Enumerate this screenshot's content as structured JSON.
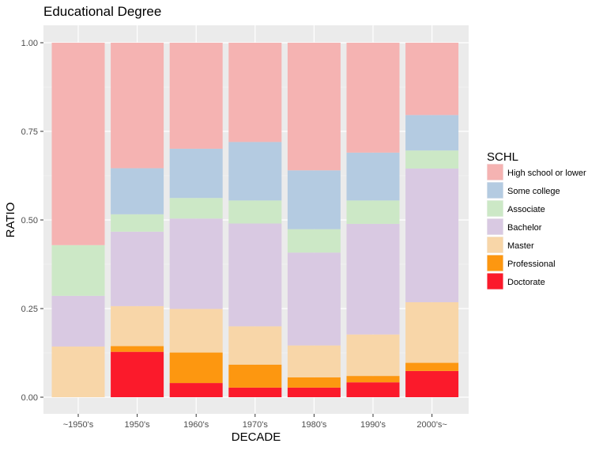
{
  "chart_data": {
    "type": "bar",
    "stacked": true,
    "normalized": true,
    "title": "Educational Degree",
    "xlabel": "DECADE",
    "ylabel": "RATIO",
    "ylim": [
      0,
      1
    ],
    "yticks": [
      "0.00",
      "0.25",
      "0.50",
      "0.75",
      "1.00"
    ],
    "ytick_values": [
      0,
      0.25,
      0.5,
      0.75,
      1.0
    ],
    "categories": [
      "~1950's",
      "1950's",
      "1960's",
      "1970's",
      "1980's",
      "1990's",
      "2000's~"
    ],
    "grid": true,
    "legend_position": "right",
    "legend_title": "SCHL",
    "series": [
      {
        "name": "Doctorate",
        "color": "#fb1a2b",
        "values": [
          0.0,
          0.128,
          0.04,
          0.027,
          0.027,
          0.042,
          0.074
        ]
      },
      {
        "name": "Professional",
        "color": "#fd9710",
        "values": [
          0.0,
          0.016,
          0.086,
          0.065,
          0.029,
          0.018,
          0.023
        ]
      },
      {
        "name": "Master",
        "color": "#f8d6a8",
        "values": [
          0.143,
          0.113,
          0.123,
          0.108,
          0.09,
          0.117,
          0.171
        ]
      },
      {
        "name": "Bachelor",
        "color": "#d9c9e2",
        "values": [
          0.143,
          0.21,
          0.255,
          0.29,
          0.262,
          0.312,
          0.377
        ]
      },
      {
        "name": "Associate",
        "color": "#cce8c6",
        "values": [
          0.143,
          0.049,
          0.058,
          0.065,
          0.066,
          0.066,
          0.051
        ]
      },
      {
        "name": "Some college",
        "color": "#b4cbe1",
        "values": [
          0.0,
          0.13,
          0.139,
          0.165,
          0.166,
          0.135,
          0.1
        ]
      },
      {
        "name": "High school or lower",
        "color": "#f5b3b2",
        "values": [
          0.571,
          0.354,
          0.299,
          0.28,
          0.36,
          0.31,
          0.204
        ]
      }
    ],
    "legend_order": [
      "High school or lower",
      "Some college",
      "Associate",
      "Bachelor",
      "Master",
      "Professional",
      "Doctorate"
    ]
  },
  "colors": {
    "panel_background": "#ebebeb",
    "grid_major": "#ffffff",
    "axis_text": "#4d4d4d",
    "title_text": "#000000"
  }
}
